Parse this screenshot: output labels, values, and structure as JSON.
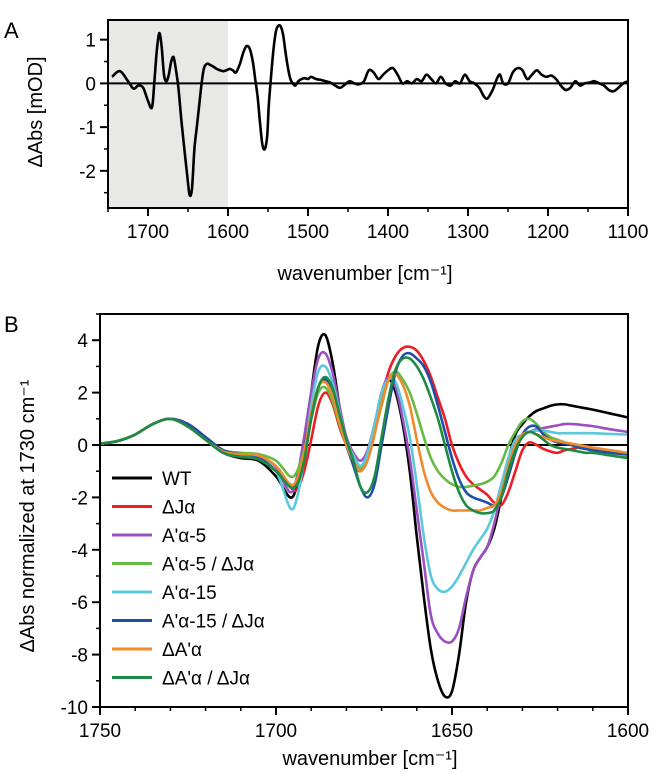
{
  "chart_data": [
    {
      "panel": "A",
      "type": "line",
      "xlabel": "wavenumber [cm⁻¹]",
      "ylabel": "ΔAbs [mOD]",
      "xlim": [
        1750,
        1100
      ],
      "ylim": [
        -2.85,
        1.45
      ],
      "x_reversed": true,
      "xticks": [
        1700,
        1600,
        1500,
        1400,
        1300,
        1200,
        1100
      ],
      "yticks": [
        -2,
        -1,
        0,
        1
      ],
      "zero_line": true,
      "shaded_region": [
        1750,
        1600
      ],
      "colors": {
        "line": "#000000",
        "shade": "#e8e8e6"
      },
      "series": [
        {
          "x": [
            1745,
            1735,
            1725,
            1718,
            1712,
            1706,
            1700,
            1695,
            1692,
            1689,
            1686,
            1683,
            1680,
            1677,
            1674,
            1671,
            1668,
            1665,
            1662,
            1658,
            1654,
            1651,
            1648,
            1645,
            1642,
            1639,
            1636,
            1633,
            1630,
            1626,
            1622,
            1618,
            1614,
            1610,
            1606,
            1602,
            1598,
            1594,
            1590,
            1585,
            1581,
            1577,
            1573,
            1569,
            1566,
            1563,
            1560,
            1557,
            1554,
            1551,
            1549,
            1546,
            1543,
            1540,
            1537,
            1534,
            1531,
            1528,
            1525,
            1522,
            1519,
            1516,
            1512,
            1508,
            1504,
            1500,
            1496,
            1490,
            1484,
            1478,
            1472,
            1466,
            1460,
            1454,
            1448,
            1442,
            1436,
            1430,
            1424,
            1418,
            1412,
            1406,
            1400,
            1394,
            1388,
            1382,
            1376,
            1370,
            1364,
            1358,
            1352,
            1346,
            1340,
            1334,
            1328,
            1322,
            1316,
            1310,
            1304,
            1298,
            1292,
            1286,
            1280,
            1276,
            1272,
            1268,
            1264,
            1260,
            1256,
            1250,
            1244,
            1238,
            1232,
            1226,
            1220,
            1214,
            1208,
            1202,
            1196,
            1190,
            1184,
            1178,
            1172,
            1166,
            1160,
            1154,
            1148,
            1142,
            1136,
            1130,
            1124,
            1118,
            1112,
            1106,
            1100
          ],
          "y": [
            0.15,
            0.28,
            0.05,
            -0.12,
            -0.05,
            -0.1,
            -0.4,
            -0.55,
            0.05,
            0.75,
            1.15,
            0.85,
            0.2,
            0.05,
            0.2,
            0.5,
            0.6,
            0.3,
            -0.1,
            -0.9,
            -1.6,
            -2.1,
            -2.55,
            -2.4,
            -1.5,
            -1.0,
            -0.5,
            0.0,
            0.35,
            0.45,
            0.42,
            0.38,
            0.33,
            0.3,
            0.28,
            0.3,
            0.33,
            0.3,
            0.25,
            0.45,
            0.7,
            0.85,
            0.8,
            0.5,
            0.1,
            -0.3,
            -0.9,
            -1.4,
            -1.5,
            -1.2,
            -0.5,
            0.2,
            0.8,
            1.2,
            1.32,
            1.3,
            1.1,
            0.7,
            0.35,
            0.1,
            0.0,
            -0.05,
            0.05,
            0.1,
            0.12,
            0.1,
            0.15,
            0.1,
            0.08,
            0.05,
            0.02,
            -0.05,
            -0.1,
            -0.03,
            0.05,
            0.0,
            -0.02,
            0.05,
            0.3,
            0.25,
            0.1,
            0.2,
            0.3,
            0.35,
            0.2,
            0.0,
            0.05,
            0.0,
            0.1,
            0.05,
            0.2,
            0.1,
            0.0,
            0.15,
            0.0,
            -0.05,
            0.05,
            0.0,
            0.2,
            0.05,
            0.0,
            -0.1,
            -0.3,
            -0.35,
            -0.25,
            -0.1,
            0.1,
            0.2,
            0.0,
            0.0,
            0.25,
            0.35,
            0.3,
            0.1,
            0.2,
            0.3,
            0.2,
            0.15,
            0.18,
            0.1,
            -0.05,
            -0.15,
            -0.1,
            0.05,
            -0.05,
            0.0,
            0.02,
            0.05,
            0.0,
            -0.05,
            -0.15,
            -0.18,
            -0.1,
            0.0,
            0.05
          ]
        }
      ]
    },
    {
      "panel": "B",
      "type": "line",
      "xlabel": "wavenumber [cm⁻¹]",
      "ylabel": "ΔAbs normalized at 1730 cm⁻¹",
      "xlim": [
        1750,
        1600
      ],
      "ylim": [
        -10,
        5
      ],
      "x_reversed": true,
      "xticks": [
        1750,
        1700,
        1650,
        1600
      ],
      "yticks": [
        -10,
        -8,
        -6,
        -4,
        -2,
        0,
        2,
        4
      ],
      "zero_line": true,
      "legend_position": "bottom-left",
      "x": [
        1750,
        1745,
        1740,
        1735,
        1730,
        1725,
        1720,
        1715,
        1710,
        1705,
        1700,
        1696,
        1694,
        1692,
        1690,
        1688,
        1686,
        1684,
        1682,
        1680,
        1678,
        1676,
        1674,
        1672,
        1670,
        1668,
        1666,
        1664,
        1662,
        1660,
        1658,
        1656,
        1654,
        1652,
        1650,
        1648,
        1646,
        1644,
        1642,
        1640,
        1638,
        1636,
        1634,
        1632,
        1630,
        1628,
        1626,
        1624,
        1622,
        1620,
        1618,
        1616,
        1614,
        1612,
        1610,
        1605,
        1600
      ],
      "series": [
        {
          "name": "WT",
          "color": "#000000",
          "values": [
            0.05,
            0.15,
            0.4,
            0.8,
            1.0,
            0.7,
            0.2,
            -0.3,
            -0.5,
            -0.6,
            -1.2,
            -2.0,
            -1.5,
            0.0,
            2.0,
            3.8,
            4.2,
            3.2,
            1.5,
            0.0,
            -0.6,
            -1.0,
            -0.4,
            0.6,
            2.0,
            2.5,
            2.0,
            0.8,
            -1.0,
            -3.5,
            -5.8,
            -7.8,
            -9.0,
            -9.6,
            -9.4,
            -8.0,
            -6.0,
            -4.8,
            -4.3,
            -3.9,
            -3.2,
            -2.0,
            -0.6,
            0.4,
            0.8,
            1.1,
            1.3,
            1.4,
            1.5,
            1.55,
            1.55,
            1.5,
            1.45,
            1.4,
            1.35,
            1.2,
            1.05
          ]
        },
        {
          "name": "ΔJα",
          "color": "#ee1c24",
          "values": [
            0.05,
            0.15,
            0.4,
            0.8,
            1.0,
            0.8,
            0.3,
            -0.2,
            -0.35,
            -0.45,
            -0.9,
            -1.6,
            -1.7,
            -1.0,
            0.2,
            1.5,
            2.0,
            1.6,
            0.7,
            0.0,
            -0.5,
            -0.8,
            -0.4,
            0.5,
            1.8,
            2.8,
            3.4,
            3.7,
            3.75,
            3.6,
            3.2,
            2.6,
            1.8,
            1.0,
            0.0,
            -0.7,
            -1.2,
            -1.5,
            -1.7,
            -1.9,
            -2.2,
            -2.3,
            -1.8,
            -1.0,
            -0.2,
            0.1,
            0.0,
            -0.15,
            -0.25,
            -0.3,
            -0.2,
            -0.15,
            -0.1,
            -0.12,
            -0.15,
            -0.25,
            -0.35
          ]
        },
        {
          "name": "A'α-5",
          "color": "#9b4fc0",
          "values": [
            0.05,
            0.15,
            0.4,
            0.8,
            1.0,
            0.8,
            0.3,
            -0.2,
            -0.3,
            -0.4,
            -0.9,
            -1.8,
            -1.2,
            0.3,
            2.0,
            3.3,
            3.5,
            2.8,
            1.5,
            0.3,
            -0.3,
            -0.6,
            -0.2,
            0.8,
            2.0,
            2.6,
            2.2,
            1.0,
            -0.5,
            -2.5,
            -4.5,
            -6.5,
            -7.2,
            -7.5,
            -7.5,
            -7.0,
            -5.8,
            -4.8,
            -4.3,
            -3.9,
            -3.0,
            -1.8,
            -0.6,
            0.1,
            0.4,
            0.5,
            0.6,
            0.65,
            0.7,
            0.75,
            0.8,
            0.8,
            0.78,
            0.75,
            0.72,
            0.6,
            0.5
          ]
        },
        {
          "name": "A'α-5 / ΔJα",
          "color": "#66bb44",
          "values": [
            0.05,
            0.15,
            0.4,
            0.8,
            1.0,
            0.75,
            0.3,
            -0.2,
            -0.3,
            -0.35,
            -0.6,
            -1.2,
            -1.0,
            -0.2,
            1.0,
            2.0,
            2.2,
            1.7,
            0.8,
            0.0,
            -0.5,
            -0.9,
            -0.5,
            0.5,
            1.5,
            2.5,
            2.8,
            2.5,
            2.0,
            1.2,
            0.3,
            -0.5,
            -1.0,
            -1.3,
            -1.5,
            -1.6,
            -1.6,
            -1.55,
            -1.5,
            -1.4,
            -1.2,
            -0.7,
            0.0,
            0.5,
            0.9,
            1.0,
            0.8,
            0.5,
            0.3,
            0.2,
            0.1,
            0.0,
            -0.1,
            -0.15,
            -0.2,
            -0.3,
            -0.4
          ]
        },
        {
          "name": "A'α-15",
          "color": "#5bc8dc",
          "values": [
            0.05,
            0.15,
            0.4,
            0.8,
            1.0,
            0.7,
            0.2,
            -0.3,
            -0.45,
            -0.5,
            -1.0,
            -2.4,
            -2.0,
            -0.5,
            1.5,
            2.8,
            3.0,
            2.4,
            1.3,
            0.2,
            -0.4,
            -0.8,
            -0.3,
            0.8,
            2.0,
            2.5,
            2.4,
            1.5,
            0.3,
            -1.5,
            -3.5,
            -5.0,
            -5.5,
            -5.6,
            -5.4,
            -5.0,
            -4.5,
            -4.0,
            -3.6,
            -3.2,
            -2.5,
            -1.5,
            -0.5,
            0.2,
            0.4,
            0.5,
            0.55,
            0.55,
            0.5,
            0.45,
            0.45,
            0.45,
            0.45,
            0.45,
            0.45,
            0.42,
            0.4
          ]
        },
        {
          "name": "A'α-15 / ΔJα",
          "color": "#1f4fa8",
          "values": [
            0.05,
            0.15,
            0.4,
            0.8,
            1.0,
            0.8,
            0.3,
            -0.2,
            -0.35,
            -0.45,
            -1.0,
            -1.5,
            -1.4,
            -0.5,
            1.0,
            2.2,
            2.5,
            2.0,
            1.0,
            0.0,
            -0.8,
            -1.6,
            -2.0,
            -1.5,
            0.0,
            1.5,
            2.8,
            3.4,
            3.5,
            3.3,
            3.0,
            2.4,
            1.5,
            0.5,
            -0.5,
            -1.3,
            -1.8,
            -2.0,
            -2.1,
            -2.2,
            -2.3,
            -2.0,
            -1.2,
            -0.3,
            0.4,
            0.7,
            0.7,
            0.4,
            0.2,
            0.1,
            0.05,
            0.0,
            -0.1,
            -0.15,
            -0.2,
            -0.3,
            -0.35
          ]
        },
        {
          "name": "ΔA'α",
          "color": "#f08a2c",
          "values": [
            0.05,
            0.15,
            0.4,
            0.8,
            1.0,
            0.7,
            0.2,
            -0.25,
            -0.35,
            -0.4,
            -0.8,
            -1.5,
            -1.3,
            -0.3,
            1.2,
            2.2,
            2.4,
            1.9,
            0.9,
            0.0,
            -0.6,
            -1.0,
            -0.6,
            0.4,
            1.6,
            2.5,
            2.7,
            2.3,
            1.5,
            0.2,
            -1.0,
            -1.8,
            -2.2,
            -2.4,
            -2.5,
            -2.5,
            -2.5,
            -2.5,
            -2.5,
            -2.4,
            -2.3,
            -1.8,
            -0.8,
            0.0,
            0.4,
            0.5,
            0.4,
            0.3,
            0.2,
            0.15,
            0.1,
            0.05,
            0.0,
            -0.05,
            -0.1,
            -0.2,
            -0.3
          ]
        },
        {
          "name": "ΔA'α / ΔJα",
          "color": "#1e8a44",
          "values": [
            0.05,
            0.15,
            0.4,
            0.8,
            1.0,
            0.7,
            0.2,
            -0.3,
            -0.45,
            -0.55,
            -1.0,
            -1.6,
            -1.5,
            -0.6,
            1.0,
            2.2,
            2.6,
            2.2,
            1.2,
            0.2,
            -0.6,
            -1.6,
            -1.8,
            -1.2,
            0.3,
            1.8,
            2.9,
            3.3,
            3.3,
            3.0,
            2.5,
            1.8,
            1.0,
            0.0,
            -1.0,
            -1.8,
            -2.3,
            -2.5,
            -2.6,
            -2.6,
            -2.5,
            -2.0,
            -1.0,
            -0.2,
            0.3,
            0.5,
            0.4,
            0.2,
            0.0,
            -0.1,
            -0.15,
            -0.2,
            -0.25,
            -0.3,
            -0.3,
            -0.4,
            -0.5
          ]
        }
      ]
    }
  ]
}
